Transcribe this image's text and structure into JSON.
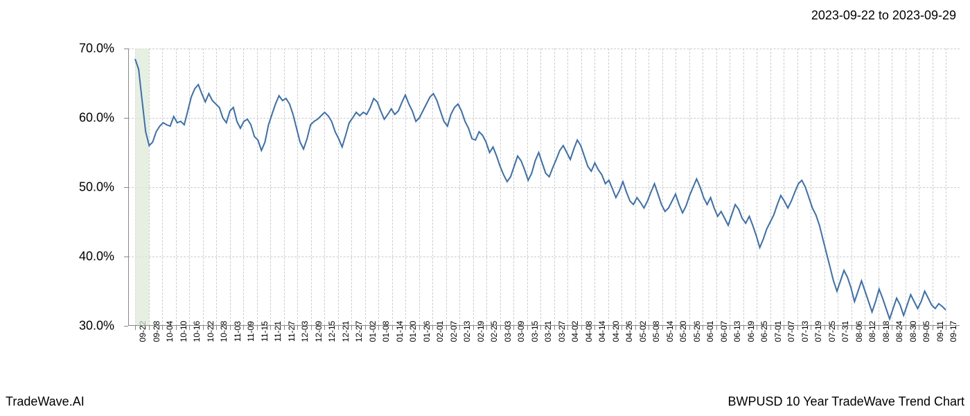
{
  "header": {
    "date_range": "2023-09-22 to 2023-09-29"
  },
  "footer": {
    "left": "TradeWave.AI",
    "right": "BWPUSD 10 Year TradeWave Trend Chart"
  },
  "chart": {
    "type": "line",
    "background_color": "#ffffff",
    "grid_color": "#cccccc",
    "axis_color": "#888888",
    "line_color": "#3a6fb0",
    "line_width": 2,
    "highlight_color": "#dce8d6",
    "y_axis": {
      "min": 30,
      "max": 70,
      "ticks": [
        30,
        40,
        50,
        60,
        70
      ],
      "tick_labels": [
        "30.0%",
        "40.0%",
        "50.0%",
        "60.0%",
        "70.0%"
      ],
      "label_fontsize": 18
    },
    "x_axis": {
      "labels": [
        "09-22",
        "09-28",
        "10-04",
        "10-10",
        "10-16",
        "10-22",
        "10-28",
        "11-03",
        "11-09",
        "11-15",
        "11-21",
        "11-27",
        "12-03",
        "12-09",
        "12-15",
        "12-21",
        "12-27",
        "01-02",
        "01-08",
        "01-14",
        "01-20",
        "01-26",
        "02-01",
        "02-07",
        "02-13",
        "02-19",
        "02-25",
        "03-03",
        "03-09",
        "03-15",
        "03-21",
        "03-27",
        "04-02",
        "04-08",
        "04-14",
        "04-20",
        "04-26",
        "05-02",
        "05-08",
        "05-14",
        "05-20",
        "05-26",
        "06-01",
        "06-07",
        "06-13",
        "06-19",
        "06-25",
        "07-01",
        "07-07",
        "07-13",
        "07-19",
        "07-25",
        "07-31",
        "08-06",
        "08-12",
        "08-18",
        "08-24",
        "08-30",
        "09-05",
        "09-11",
        "09-17"
      ],
      "label_fontsize": 12
    },
    "highlight_band": {
      "start_index": 0,
      "end_index": 1
    },
    "series": [
      68.5,
      67.0,
      62.5,
      58.0,
      56.0,
      56.5,
      58.0,
      58.8,
      59.3,
      59.0,
      58.8,
      60.2,
      59.3,
      59.5,
      59.0,
      61.0,
      63.0,
      64.2,
      64.8,
      63.5,
      62.3,
      63.5,
      62.5,
      62.0,
      61.5,
      60.0,
      59.3,
      61.0,
      61.5,
      59.5,
      58.5,
      59.5,
      59.8,
      59.0,
      57.3,
      56.8,
      55.3,
      56.5,
      59.0,
      60.5,
      62.0,
      63.2,
      62.5,
      62.8,
      62.0,
      60.5,
      58.5,
      56.5,
      55.5,
      57.0,
      59.0,
      59.5,
      59.8,
      60.3,
      60.8,
      60.3,
      59.5,
      58.0,
      57.0,
      55.8,
      57.5,
      59.3,
      60.0,
      60.8,
      60.3,
      60.8,
      60.5,
      61.5,
      62.8,
      62.3,
      61.0,
      59.8,
      60.5,
      61.3,
      60.5,
      61.0,
      62.2,
      63.3,
      62.0,
      61.0,
      59.5,
      60.0,
      61.0,
      62.0,
      63.0,
      63.5,
      62.5,
      61.0,
      59.5,
      58.8,
      60.5,
      61.5,
      62.0,
      61.0,
      59.5,
      58.5,
      57.0,
      56.8,
      58.0,
      57.5,
      56.5,
      55.0,
      55.8,
      54.5,
      53.0,
      51.8,
      50.8,
      51.5,
      53.0,
      54.5,
      53.8,
      52.5,
      51.0,
      52.0,
      53.8,
      55.0,
      53.5,
      52.0,
      51.5,
      52.8,
      54.0,
      55.3,
      56.0,
      55.0,
      54.0,
      55.5,
      56.8,
      56.0,
      54.5,
      53.0,
      52.3,
      53.5,
      52.5,
      51.8,
      50.5,
      51.0,
      49.8,
      48.5,
      49.5,
      50.8,
      49.3,
      48.0,
      47.5,
      48.5,
      47.8,
      47.0,
      48.0,
      49.3,
      50.5,
      49.0,
      47.5,
      46.5,
      47.0,
      48.0,
      49.0,
      47.5,
      46.3,
      47.3,
      48.8,
      50.0,
      51.2,
      50.0,
      48.5,
      47.5,
      48.5,
      47.0,
      45.8,
      46.5,
      45.5,
      44.5,
      46.0,
      47.5,
      46.8,
      45.5,
      44.8,
      45.8,
      44.5,
      43.0,
      41.3,
      42.5,
      44.0,
      45.0,
      46.0,
      47.5,
      48.8,
      48.0,
      47.0,
      48.0,
      49.3,
      50.5,
      51.0,
      50.0,
      48.5,
      47.0,
      46.0,
      44.5,
      42.5,
      40.5,
      38.5,
      36.5,
      35.0,
      36.5,
      38.0,
      37.0,
      35.5,
      33.5,
      35.0,
      36.5,
      35.0,
      33.5,
      32.0,
      33.5,
      35.3,
      34.0,
      32.5,
      31.0,
      32.5,
      34.0,
      33.0,
      31.5,
      33.0,
      34.5,
      33.5,
      32.5,
      33.5,
      35.0,
      34.0,
      33.0,
      32.5,
      33.2,
      32.8,
      32.3
    ]
  }
}
